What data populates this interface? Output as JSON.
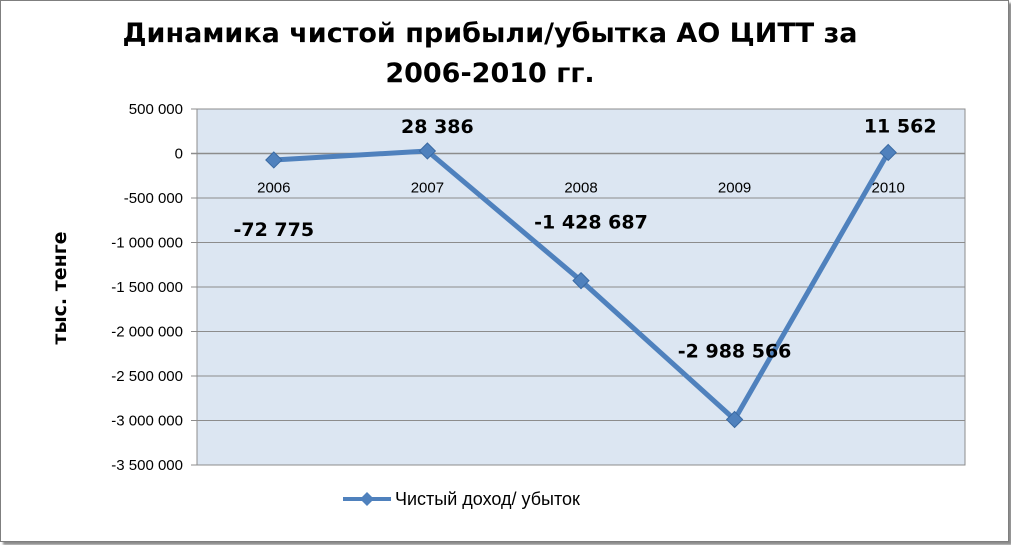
{
  "chart_data": {
    "type": "line",
    "title": "Динамика чистой прибыли/убытка АО ЦИТТ за 2006-2010 гг.",
    "ylabel": "тыс. тенге",
    "xlabel": "",
    "categories": [
      "2006",
      "2007",
      "2008",
      "2009",
      "2010"
    ],
    "series": [
      {
        "name": "Чистый доход/ убыток",
        "values": [
          -72775,
          28386,
          -1428687,
          -2988566,
          11562
        ],
        "labels": [
          "-72 775",
          "28 386",
          "-1 428 687",
          "-2 988 566",
          "11 562"
        ],
        "color": "#4f81bd"
      }
    ],
    "ylim": [
      -3500000,
      500000
    ],
    "yticks": [
      500000,
      0,
      -500000,
      -1000000,
      -1500000,
      -2000000,
      -2500000,
      -3000000,
      -3500000
    ],
    "ytick_labels": [
      "500 000",
      "0",
      "-500 000",
      "-1 000 000",
      "-1 500 000",
      "-2 000 000",
      "-2 500 000",
      "-3 000 000",
      "-3 500 000"
    ],
    "grid": true,
    "legend": "bottom",
    "plot_background": "#dce6f2",
    "gridline_color": "#8c8c8c"
  }
}
